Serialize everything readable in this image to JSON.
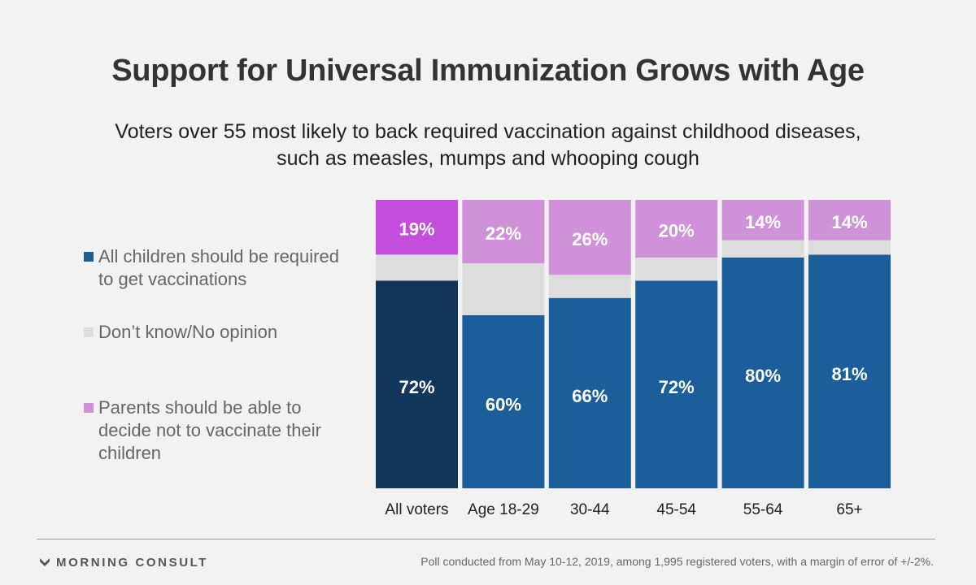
{
  "header": {
    "title": "Support for Universal Immunization Grows with Age",
    "subtitle_line1": "Voters over 55 most likely to back required vaccination against childhood diseases,",
    "subtitle_line2": "such as measles, mumps and whooping cough"
  },
  "legend": {
    "items": [
      {
        "line1": "All children should be required",
        "line2": "to get vaccinations",
        "line3": "",
        "color": "#1b5e99"
      },
      {
        "line1": "Don’t know/No opinion",
        "line2": "",
        "line3": "",
        "color": "#dedddd"
      },
      {
        "line1": "Parents should be able to",
        "line2": "decide not to vaccinate their",
        "line3": "children",
        "color": "#cf92d8"
      }
    ]
  },
  "chart_data": {
    "type": "bar",
    "stacked": true,
    "title": "Support for Universal Immunization Grows with Age",
    "categories": [
      "All voters",
      "Age 18-29",
      "30-44",
      "45-54",
      "55-64",
      "65+"
    ],
    "series": [
      {
        "name": "All children should be required to get vaccinations",
        "values": [
          72,
          60,
          66,
          72,
          80,
          81
        ],
        "labels": [
          "72%",
          "60%",
          "66%",
          "72%",
          "80%",
          "81%"
        ],
        "color": "#1b5e99",
        "highlight_color": "#12375a"
      },
      {
        "name": "Don’t know/No opinion",
        "values": [
          9,
          18,
          8,
          8,
          6,
          5
        ],
        "labels": [
          "",
          "",
          "",
          "",
          "",
          ""
        ],
        "color": "#dedddd",
        "highlight_color": "#dedddd"
      },
      {
        "name": "Parents should be able to decide not to vaccinate their children",
        "values": [
          19,
          22,
          26,
          20,
          14,
          14
        ],
        "labels": [
          "19%",
          "22%",
          "26%",
          "20%",
          "14%",
          "14%"
        ],
        "color": "#cf92d8",
        "highlight_color": "#c34edb"
      }
    ],
    "highlight_category": "All voters",
    "ylim": [
      0,
      100
    ],
    "grid": false
  },
  "footer": {
    "logo_text": "MORNING CONSULT",
    "note": "Poll conducted from May 10-12, 2019, among 1,995 registered voters, with a margin of error of +/-2%."
  }
}
